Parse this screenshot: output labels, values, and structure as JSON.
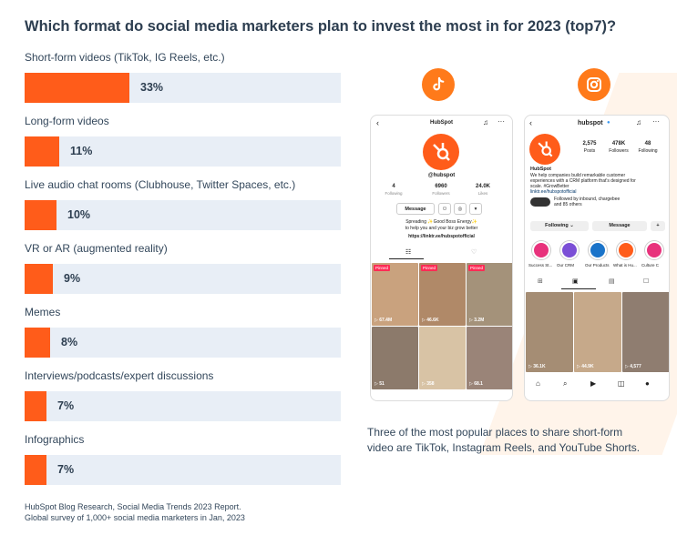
{
  "page": {
    "caption": "Three of the most popular places to share short-form video are TikTok, Instagram Reels, and YouTube Shorts.",
    "source_line1": "HubSpot Blog Research, Social Media Trends 2023 Report.",
    "source_line2": "Global survey of 1,000+ social media marketers in Jan, 2023"
  },
  "colors": {
    "bar": "#ff5c1a",
    "track": "#e8eef6",
    "accent": "#ff7a1a",
    "text": "#2d3e50"
  },
  "chart_data": {
    "type": "bar",
    "orientation": "horizontal",
    "title": "Which format do social media marketers plan to invest the most in for 2023 (top7)?",
    "categories": [
      "Short-form videos (TikTok, IG Reels, etc.)",
      "Long-form videos",
      "Live audio chat rooms (Clubhouse, Twitter Spaces, etc.)",
      "VR or AR (augmented reality)",
      "Memes",
      "Interviews/podcasts/expert discussions",
      "Infographics"
    ],
    "values": [
      33,
      11,
      10,
      9,
      8,
      7,
      7
    ],
    "value_labels": [
      "33%",
      "11%",
      "10%",
      "9%",
      "8%",
      "7%",
      "7%"
    ],
    "unit": "%",
    "xlim": [
      0,
      100
    ]
  },
  "tiktok": {
    "logo_icon": "tiktok-icon",
    "header": "HubSpot",
    "handle": "@hubspot",
    "following_count": "4",
    "following_label": "Following",
    "followers_count": "6960",
    "followers_label": "Followers",
    "likes_count": "24.0K",
    "likes_label": "Likes",
    "message_button": "Message",
    "bio_line1": "Spreading ✨Good Boss Energy✨",
    "bio_line2": "to help you and your biz grow better",
    "link": "https://linktr.ee/hubspotofficial",
    "pinned_label": "Pinned",
    "video_views": [
      "67.4M",
      "46.6K",
      "3.2M",
      "51",
      "358",
      "68.1"
    ]
  },
  "instagram": {
    "logo_icon": "instagram-icon",
    "username": "hubspot",
    "posts_count": "2,575",
    "posts_label": "Posts",
    "followers_count": "478K",
    "followers_label": "Followers",
    "following_count": "48",
    "following_label": "Following",
    "name": "HubSpot",
    "bio_line1": "We help companies build remarkable customer",
    "bio_line2": "experiences with a CRM platform that's designed for",
    "bio_line3": "scale. #GrowBetter",
    "link": "linktr.ee/hubspotofficial",
    "followed_by_line1": "Followed by inbound, chargebee",
    "followed_by_line2": "and 85 others",
    "following_button": "Following ⌄",
    "message_button": "Message",
    "highlights": [
      "Success St...",
      "Our CRM",
      "Our Products",
      "What is Hu...",
      "Culture C"
    ],
    "reel_views": [
      "36.1K",
      "44.9K",
      "4,577"
    ]
  }
}
